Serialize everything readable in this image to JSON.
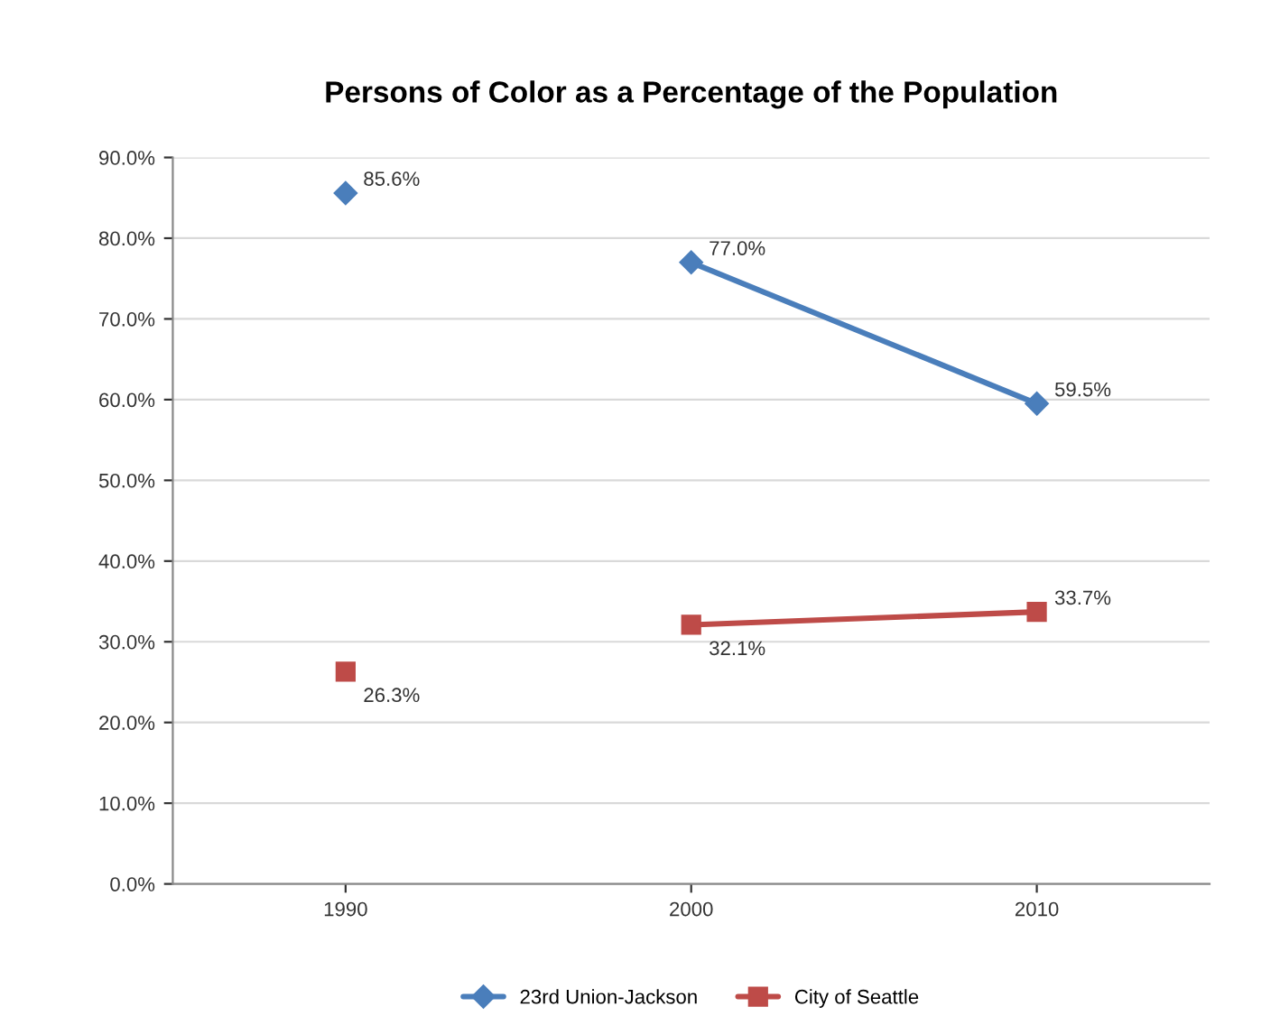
{
  "chart_data": {
    "type": "line",
    "title": "Persons of Color as a Percentage of the Population",
    "categories": [
      "1990",
      "2000",
      "2010"
    ],
    "series": [
      {
        "name": "23rd Union-Jackson",
        "color": "#4a7ebb",
        "marker": "diamond",
        "values": [
          null,
          77.0,
          59.5
        ],
        "value_labels": [
          null,
          "77.0%",
          "59.5%"
        ]
      },
      {
        "color": "#4a7ebb",
        "marker": "diamond",
        "values": [
          85.6,
          null,
          null
        ],
        "value_labels": [
          "85.6%",
          null,
          null
        ]
      },
      {
        "name": "City of Seattle",
        "color": "#be4b48",
        "marker": "square",
        "values": [
          null,
          32.1,
          33.7
        ],
        "value_labels": [
          null,
          "32.1%",
          "33.7%"
        ]
      },
      {
        "color": "#be4b48",
        "marker": "square",
        "values": [
          26.3,
          null,
          null
        ],
        "value_labels": [
          "26.3%",
          null,
          null
        ]
      }
    ],
    "ylim": [
      0,
      90
    ],
    "yticks": [
      {
        "value": 0,
        "label": "0.0%"
      },
      {
        "value": 10,
        "label": "10.0%"
      },
      {
        "value": 20,
        "label": "20.0%"
      },
      {
        "value": 30,
        "label": "30.0%"
      },
      {
        "value": 40,
        "label": "40.0%"
      },
      {
        "value": 50,
        "label": "50.0%"
      },
      {
        "value": 60,
        "label": "60.0%"
      },
      {
        "value": 70,
        "label": "70.0%"
      },
      {
        "value": 80,
        "label": "80.0%"
      },
      {
        "value": 90,
        "label": "90.0%"
      }
    ],
    "grid": "y",
    "legend": "bottom",
    "line_style": "solid"
  }
}
